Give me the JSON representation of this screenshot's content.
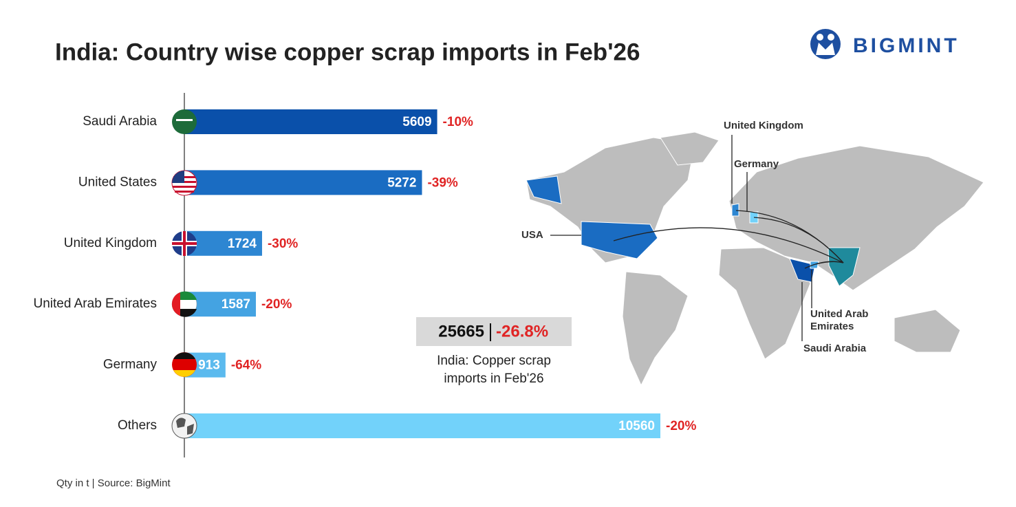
{
  "chart_data": {
    "type": "bar",
    "orientation": "horizontal",
    "title": "India: Country wise copper scrap imports in Feb'26",
    "categories": [
      "Saudi Arabia",
      "United States",
      "United Kingdom",
      "United Arab Emirates",
      "Germany",
      "Others"
    ],
    "values": [
      5609,
      5272,
      1724,
      1587,
      913,
      10560
    ],
    "colors": [
      "#0a50aa",
      "#1a6cc2",
      "#2d86d2",
      "#44a3e2",
      "#5bbaee",
      "#72d2fa"
    ],
    "changes": [
      -10,
      -39,
      -30,
      -20,
      -64,
      -20
    ],
    "change_labels": [
      "-10%",
      "-39%",
      "-30%",
      "-20%",
      "-64%",
      "-20%"
    ],
    "total": {
      "value": 25665,
      "change": -26.8,
      "change_label": "-26.8%",
      "caption": "India: Copper scrap imports in Feb'26"
    },
    "map_labels": [
      "United Kingdom",
      "Germany",
      "USA",
      "United Arab Emirates",
      "Saudi Arabia"
    ],
    "footnote": "Qty in t | Source: BigMint",
    "brand": "BIGMINT"
  }
}
